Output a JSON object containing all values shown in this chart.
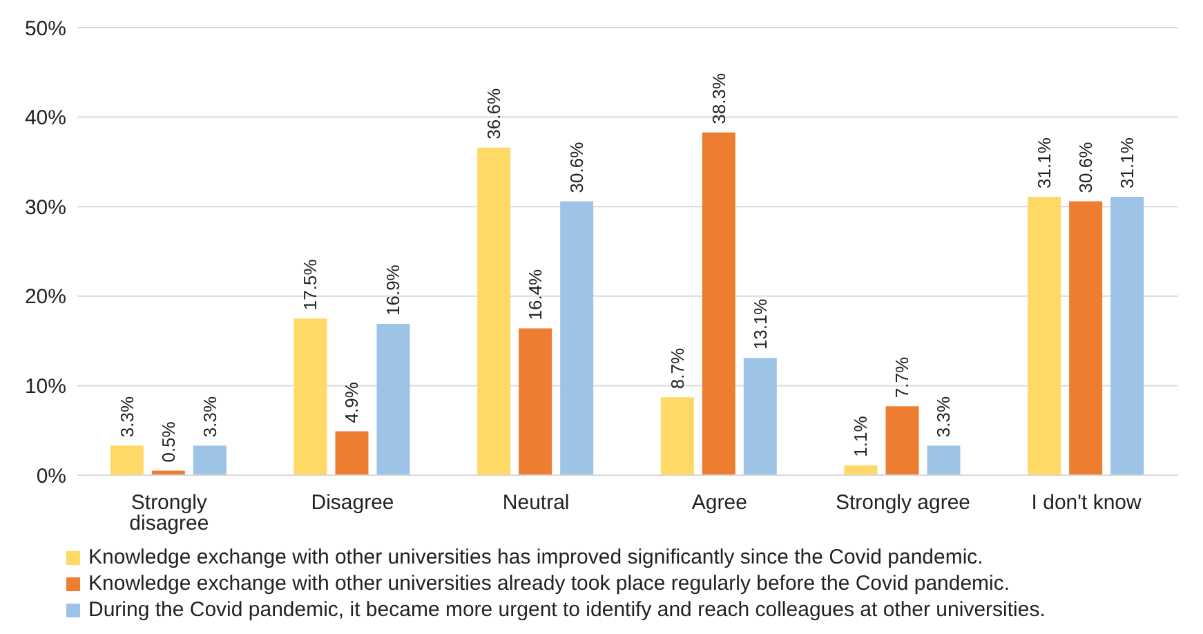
{
  "chart_data": {
    "type": "bar",
    "categories": [
      "Strongly disagree",
      "Disagree",
      "Neutral",
      "Agree",
      "Strongly agree",
      "I don't know"
    ],
    "series": [
      {
        "name": "Knowledge exchange with other universities has improved significantly since the Covid pandemic.",
        "color": "#ffd966",
        "values": [
          3.3,
          17.5,
          36.6,
          8.7,
          1.1,
          31.1
        ],
        "value_labels": [
          "3.3%",
          "17.5%",
          "36.6%",
          "8.7%",
          "1.1%",
          "31.1%"
        ]
      },
      {
        "name": "Knowledge exchange with other universities already took place regularly before the Covid pandemic.",
        "color": "#ed7d31",
        "values": [
          0.5,
          4.9,
          16.4,
          38.3,
          7.7,
          30.6
        ],
        "value_labels": [
          "0.5%",
          "4.9%",
          "16.4%",
          "38.3%",
          "7.7%",
          "30.6%"
        ]
      },
      {
        "name": "During the Covid pandemic, it became more urgent to identify and reach colleagues at other universities.",
        "color": "#9dc3e6",
        "values": [
          3.3,
          16.9,
          30.6,
          13.1,
          3.3,
          31.1
        ],
        "value_labels": [
          "3.3%",
          "16.9%",
          "30.6%",
          "13.1%",
          "3.3%",
          "31.1%"
        ]
      }
    ],
    "ylim": [
      0,
      50
    ],
    "yticks": [
      {
        "value": 0,
        "label": "0%"
      },
      {
        "value": 10,
        "label": "10%"
      },
      {
        "value": 20,
        "label": "20%"
      },
      {
        "value": 30,
        "label": "30%"
      },
      {
        "value": 40,
        "label": "40%"
      },
      {
        "value": 50,
        "label": "50%"
      }
    ],
    "grid": "y",
    "legend": "bottom"
  }
}
